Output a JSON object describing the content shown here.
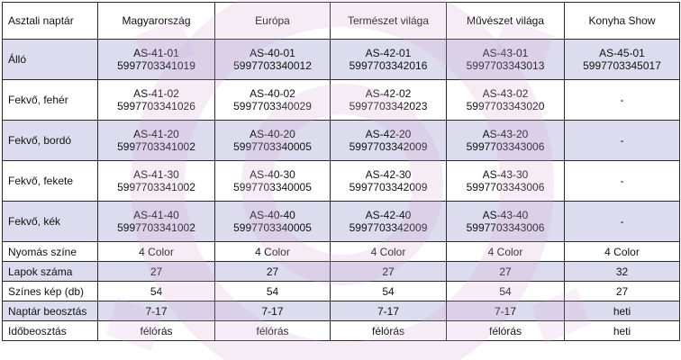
{
  "table": {
    "corner": "Asztali naptár",
    "columns": [
      "Magyarország",
      "Európa",
      "Természet világa",
      "Művészet világa",
      "Konyha Show"
    ],
    "rows": [
      {
        "label": "Álló",
        "cells": [
          {
            "code": "AS-41-01",
            "ean": "5997703341019"
          },
          {
            "code": "AS-40-01",
            "ean": "5997703340012"
          },
          {
            "code": "AS-42-01",
            "ean": "5997703342016"
          },
          {
            "code": "AS-43-01",
            "ean": "5997703343013"
          },
          {
            "code": "AS-45-01",
            "ean": "5997703345017"
          }
        ]
      },
      {
        "label": "Fekvő, fehér",
        "cells": [
          {
            "code": "AS-41-02",
            "ean": "5997703341026"
          },
          {
            "code": "AS-40-02",
            "ean": "5997703340029"
          },
          {
            "code": "AS-42-02",
            "ean": "5997703342023"
          },
          {
            "code": "AS-43-02",
            "ean": "5997703343020"
          },
          {
            "code": "-",
            "ean": ""
          }
        ]
      },
      {
        "label": "Fekvő, bordó",
        "cells": [
          {
            "code": "AS-41-20",
            "ean": "5997703341002"
          },
          {
            "code": "AS-40-20",
            "ean": "5997703340005"
          },
          {
            "code": "AS-42-20",
            "ean": "5997703342009"
          },
          {
            "code": "AS-43-20",
            "ean": "5997703343006"
          },
          {
            "code": "-",
            "ean": ""
          }
        ]
      },
      {
        "label": "Fekvő, fekete",
        "cells": [
          {
            "code": "AS-41-30",
            "ean": "5997703341002"
          },
          {
            "code": "AS-40-30",
            "ean": "5997703340005"
          },
          {
            "code": "AS-42-30",
            "ean": "5997703342009"
          },
          {
            "code": "AS-43-30",
            "ean": "5997703343006"
          },
          {
            "code": "-",
            "ean": ""
          }
        ]
      },
      {
        "label": "Fekvő, kék",
        "cells": [
          {
            "code": "AS-41-40",
            "ean": "5997703341002"
          },
          {
            "code": "AS-40-40",
            "ean": "5997703340005"
          },
          {
            "code": "AS-42-40",
            "ean": "5997703342009"
          },
          {
            "code": "AS-43-40",
            "ean": "5997703343006"
          },
          {
            "code": "-",
            "ean": ""
          }
        ]
      }
    ],
    "specs": [
      {
        "label": "Nyomás színe",
        "values": [
          "4 Color",
          "4 Color",
          "4 Color",
          "4 Color",
          "4 Color"
        ]
      },
      {
        "label": "Lapok száma",
        "values": [
          "27",
          "27",
          "27",
          "27",
          "32"
        ]
      },
      {
        "label": "Színes kép (db)",
        "values": [
          "54",
          "54",
          "54",
          "54",
          "27"
        ]
      },
      {
        "label": "Naptár beosztás",
        "values": [
          "7-17",
          "7-17",
          "7-17",
          "7-17",
          "heti"
        ]
      },
      {
        "label": "Időbeosztás",
        "values": [
          "félórás",
          "félórás",
          "félórás",
          "félórás",
          "heti"
        ]
      }
    ]
  },
  "colors": {
    "shaded_row": "#dcdcee",
    "watermark": "#d8a8d8"
  }
}
